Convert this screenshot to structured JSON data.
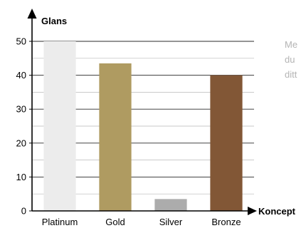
{
  "side_note": {
    "lines": [
      "Me",
      "du",
      "ditt"
    ]
  },
  "chart_data": {
    "type": "bar",
    "title": "",
    "xlabel": "Koncept",
    "ylabel": "Glans",
    "categories": [
      "Platinum",
      "Gold",
      "Silver",
      "Bronze"
    ],
    "values": [
      50,
      43.5,
      3.5,
      40
    ],
    "ylim": [
      0,
      50
    ],
    "yticks": [
      0,
      10,
      20,
      30,
      40,
      50
    ],
    "grid": true,
    "legend": "none",
    "bar_colors": [
      "#ececec",
      "#af9b61",
      "#acacac",
      "#825736"
    ]
  }
}
